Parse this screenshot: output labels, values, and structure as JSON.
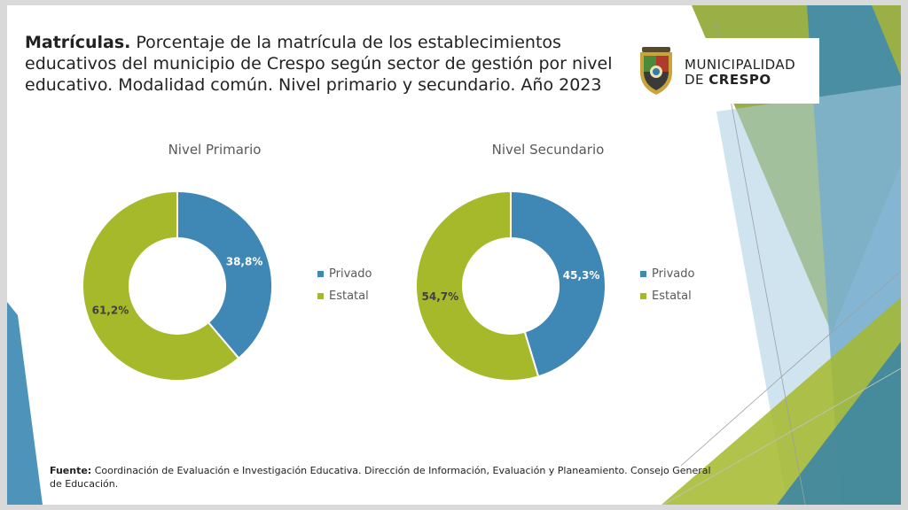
{
  "title": {
    "bold": "Matrículas.",
    "rest": " Porcentaje de la matrícula de los establecimientos educativos del municipio de Crespo según sector de gestión por nivel educativo. Modalidad común. Nivel primario y secundario. Año 2023"
  },
  "logo": {
    "line1": "MUNICIPALIDAD",
    "line2_a": "DE ",
    "line2_b": "CRESPO"
  },
  "source": {
    "label": "Fuente:",
    "text": " Coordinación de Evaluación e Investigación Educativa. Dirección de Información, Evaluación y Planeamiento. Consejo General de Educación."
  },
  "colors": {
    "privado": "#3f88b5",
    "estatal": "#a5b92b",
    "deco_green": "#8fa632",
    "deco_blue": "#3b88b3"
  },
  "chart_data": [
    {
      "type": "pie",
      "title": "Nivel Primario",
      "categories": [
        "Privado",
        "Estatal"
      ],
      "values": [
        38.8,
        61.2
      ],
      "labels": [
        "38,8%",
        "61,2%"
      ],
      "legend": "right"
    },
    {
      "type": "pie",
      "title": "Nivel Secundario",
      "categories": [
        "Privado",
        "Estatal"
      ],
      "values": [
        45.3,
        54.7
      ],
      "labels": [
        "45,3%",
        "54,7%"
      ],
      "legend": "right"
    }
  ]
}
